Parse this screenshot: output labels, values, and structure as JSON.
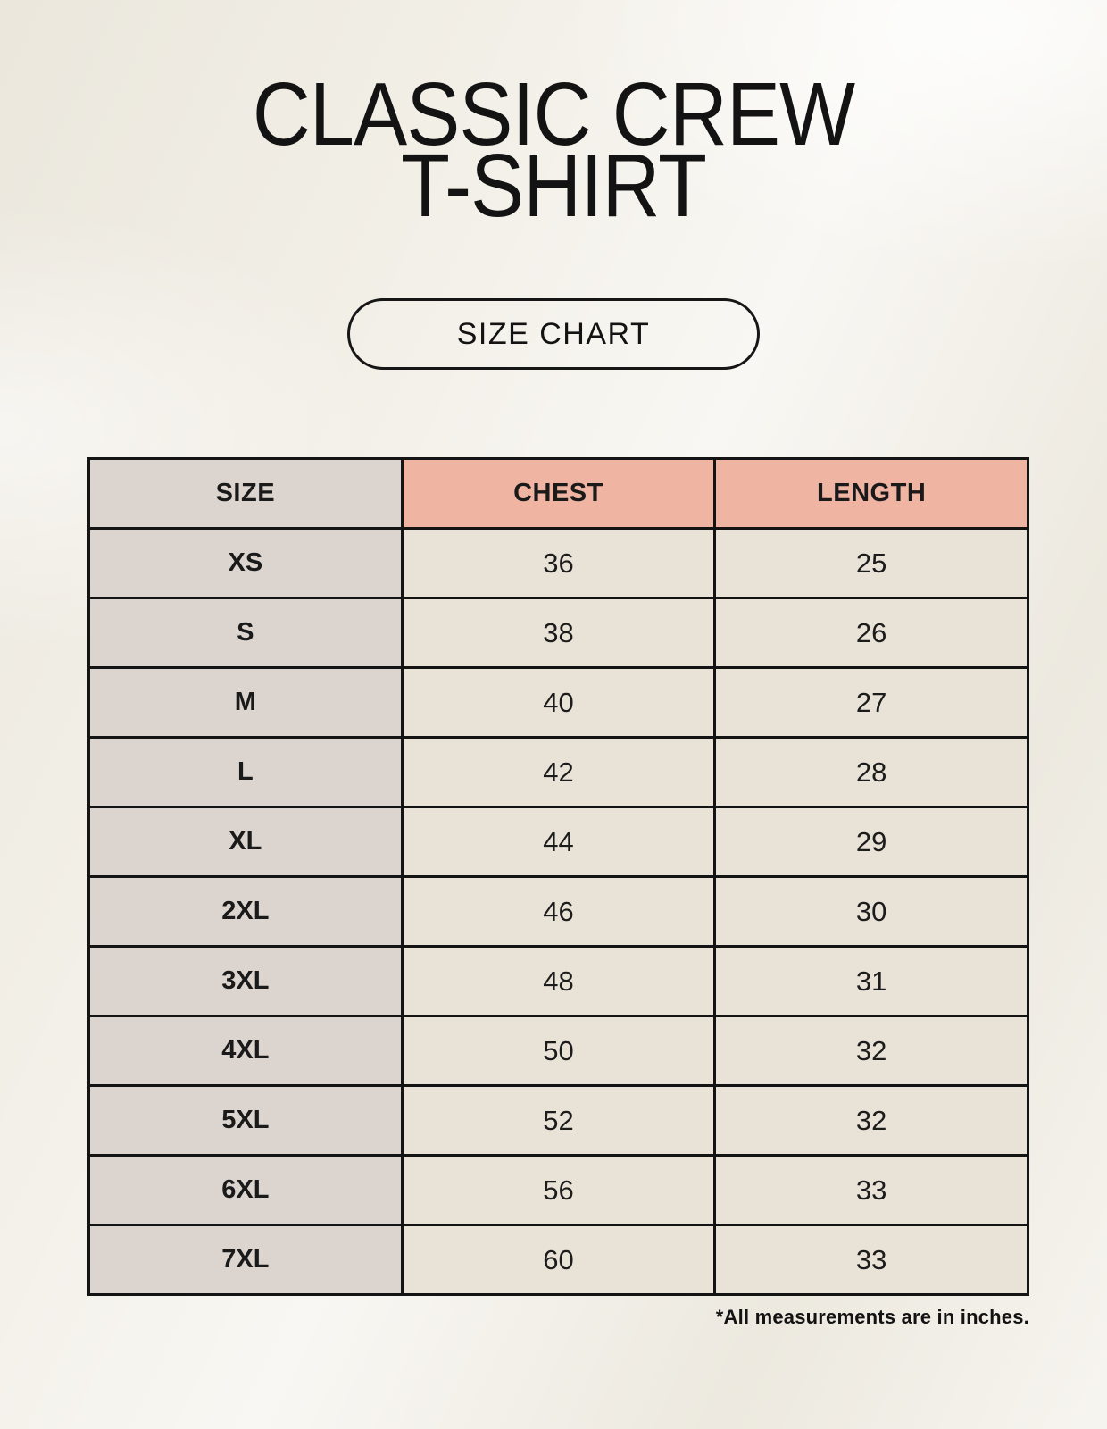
{
  "page": {
    "title_line1": "CLASSIC CREW",
    "title_line2": "T-SHIRT",
    "button_label": "SIZE CHART",
    "footnote": "*All measurements are in inches."
  },
  "colors": {
    "background": "#f2efe7",
    "size_column_bg": "#dcd5cf",
    "header_accent_bg": "#f0b4a2",
    "value_cell_bg": "#e9e2d7",
    "border": "#141414",
    "text": "#1a1a1a"
  },
  "chart_data": {
    "type": "table",
    "title": "CLASSIC CREW T-SHIRT size chart",
    "units": "inches",
    "columns": [
      "SIZE",
      "CHEST",
      "LENGTH"
    ],
    "rows": [
      [
        "XS",
        "36",
        "25"
      ],
      [
        "S",
        "38",
        "26"
      ],
      [
        "M",
        "40",
        "27"
      ],
      [
        "L",
        "42",
        "28"
      ],
      [
        "XL",
        "44",
        "29"
      ],
      [
        "2XL",
        "46",
        "30"
      ],
      [
        "3XL",
        "48",
        "31"
      ],
      [
        "4XL",
        "50",
        "32"
      ],
      [
        "5XL",
        "52",
        "32"
      ],
      [
        "6XL",
        "56",
        "33"
      ],
      [
        "7XL",
        "60",
        "33"
      ]
    ]
  }
}
